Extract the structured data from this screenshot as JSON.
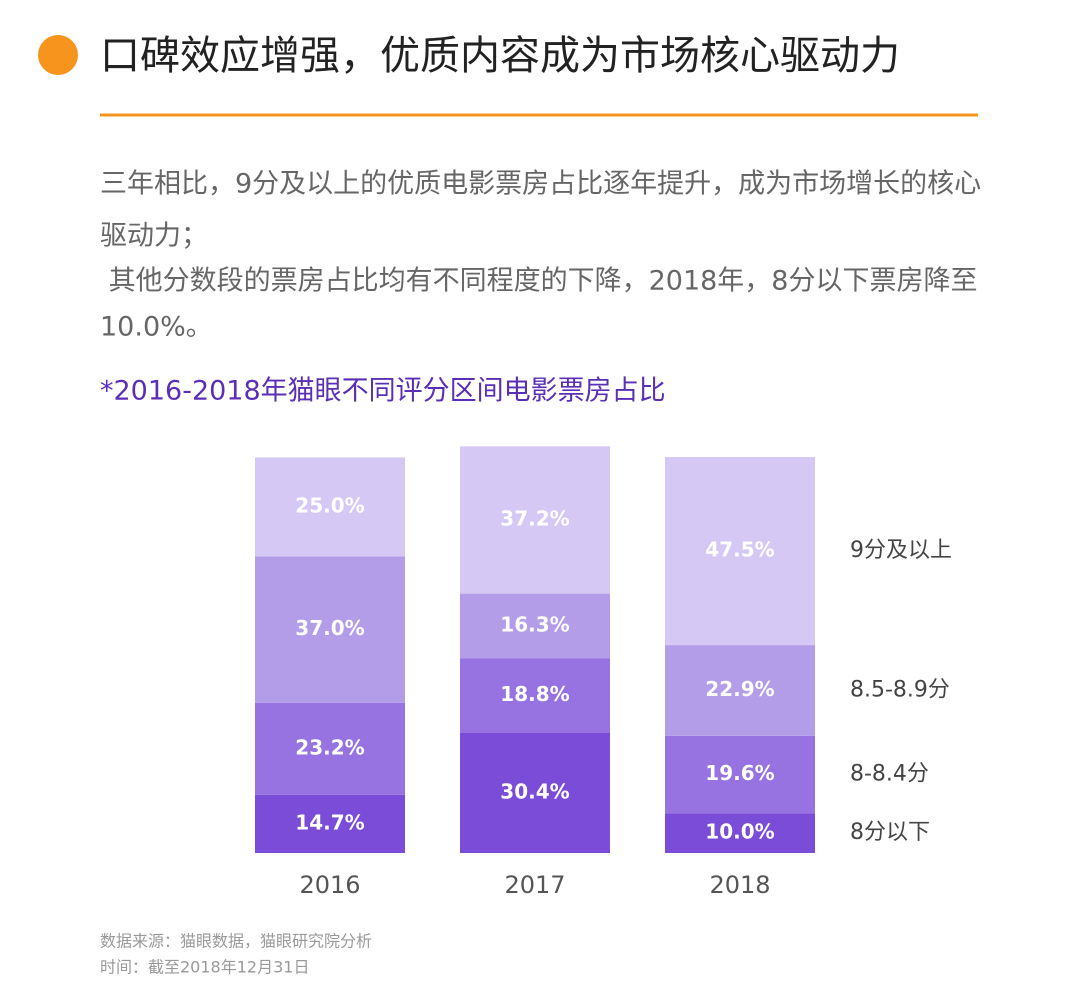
{
  "header": {
    "title": "口碑效应增强，优质内容成为市场核心驱动力"
  },
  "description": [
    "三年相比，9分及以上的优质电影票房占比逐年提升，成为市场增长的核心",
    "驱动力；",
    " 其他分数段的票房占比均有不同程度的下降，2018年，8分以下票房降至",
    "10.0%。"
  ],
  "chart_data": {
    "type": "stacked_bar",
    "title": "*2016-2018年猫眼不同评分区间电影票房占比",
    "categories": [
      "2016",
      "2017",
      "2018"
    ],
    "ylim": [
      0,
      100
    ],
    "series": [
      {
        "name": "8分以下",
        "color": "#7b4cd8",
        "values": [
          14.7,
          30.4,
          10.0
        ],
        "value_labels": [
          "14.7%",
          "30.4%",
          "10.0%"
        ]
      },
      {
        "name": "8-8.4分",
        "color": "#9673e0",
        "values": [
          23.2,
          18.8,
          19.6
        ],
        "value_labels": [
          "23.2%",
          "18.8%",
          "19.6%"
        ]
      },
      {
        "name": "8.5-8.9分",
        "color": "#b39de9",
        "values": [
          37.0,
          16.3,
          22.9
        ],
        "value_labels": [
          "37.0%",
          "16.3%",
          "22.9%"
        ]
      },
      {
        "name": "9分及以上",
        "color": "#d5c8f4",
        "values": [
          25.0,
          37.2,
          47.5
        ],
        "value_labels": [
          "25.0%",
          "37.2%",
          "47.5%"
        ]
      }
    ]
  },
  "source": [
    "数据来源：猫眼数据，猫眼研究院分析",
    "时间：截至2018年12月31日"
  ]
}
